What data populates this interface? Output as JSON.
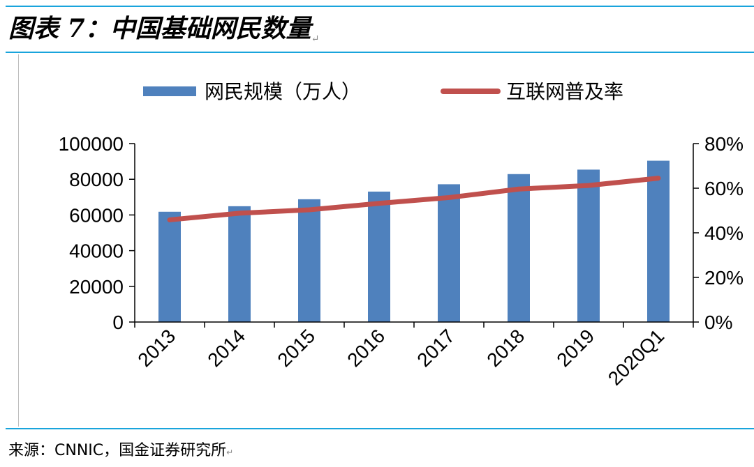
{
  "title": "图表 7：中国基础网民数量",
  "source": "来源：CNNIC，国金证券研究所",
  "chart_data": {
    "type": "bar",
    "categories": [
      "2013",
      "2014",
      "2015",
      "2016",
      "2017",
      "2018",
      "2019",
      "2020Q1"
    ],
    "series": [
      {
        "name": "网民规模（万人）",
        "type": "bar",
        "axis": "left",
        "color": "#4f81bd",
        "values": [
          61800,
          64900,
          68800,
          73100,
          77200,
          82900,
          85400,
          90400
        ]
      },
      {
        "name": "互联网普及率",
        "type": "line",
        "axis": "right",
        "color": "#c0504d",
        "values": [
          45.8,
          48.8,
          50.3,
          53.2,
          55.8,
          59.6,
          61.2,
          64.5
        ]
      }
    ],
    "y_left": {
      "ylim": [
        0,
        100000
      ],
      "ticks": [
        "0",
        "20000",
        "40000",
        "60000",
        "80000",
        "100000"
      ]
    },
    "y_right": {
      "ylim": [
        0,
        80
      ],
      "ticks": [
        "0%",
        "20%",
        "40%",
        "60%",
        "80%"
      ]
    },
    "grid": false,
    "legend": "top"
  }
}
